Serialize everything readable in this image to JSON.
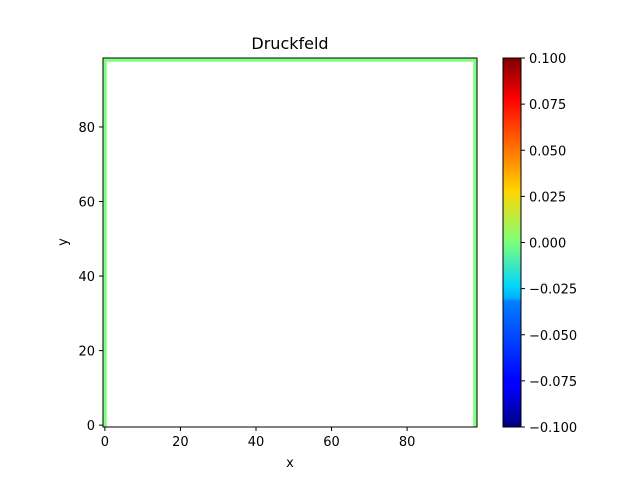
{
  "chart_data": {
    "type": "heatmap",
    "title": "Druckfeld",
    "xlabel": "x",
    "ylabel": "y",
    "xlim": [
      -0.5,
      98.5
    ],
    "ylim": [
      -0.5,
      98.5
    ],
    "xticks": [
      0,
      20,
      40,
      60,
      80
    ],
    "yticks": [
      0,
      20,
      40,
      60,
      80
    ],
    "field": {
      "description_value": 0.0,
      "nonzero_region": "boundary columns and top row only; interior not shown (NaN)",
      "left_column_x": [
        -0.5,
        0.5
      ],
      "right_column_x": [
        97.5,
        98.5
      ],
      "top_row_y": [
        97.5,
        98.5
      ],
      "value": 0.0
    },
    "colorbar": {
      "cmap": "jet",
      "vmin": -0.1,
      "vmax": 0.1,
      "ticks": [
        0.1,
        0.075,
        0.05,
        0.025,
        0.0,
        -0.025,
        -0.05,
        -0.075,
        -0.1
      ],
      "tick_labels": [
        "0.100",
        "0.075",
        "0.050",
        "0.025",
        "0.000",
        "−0.025",
        "−0.050",
        "−0.075",
        "−0.100"
      ]
    }
  }
}
